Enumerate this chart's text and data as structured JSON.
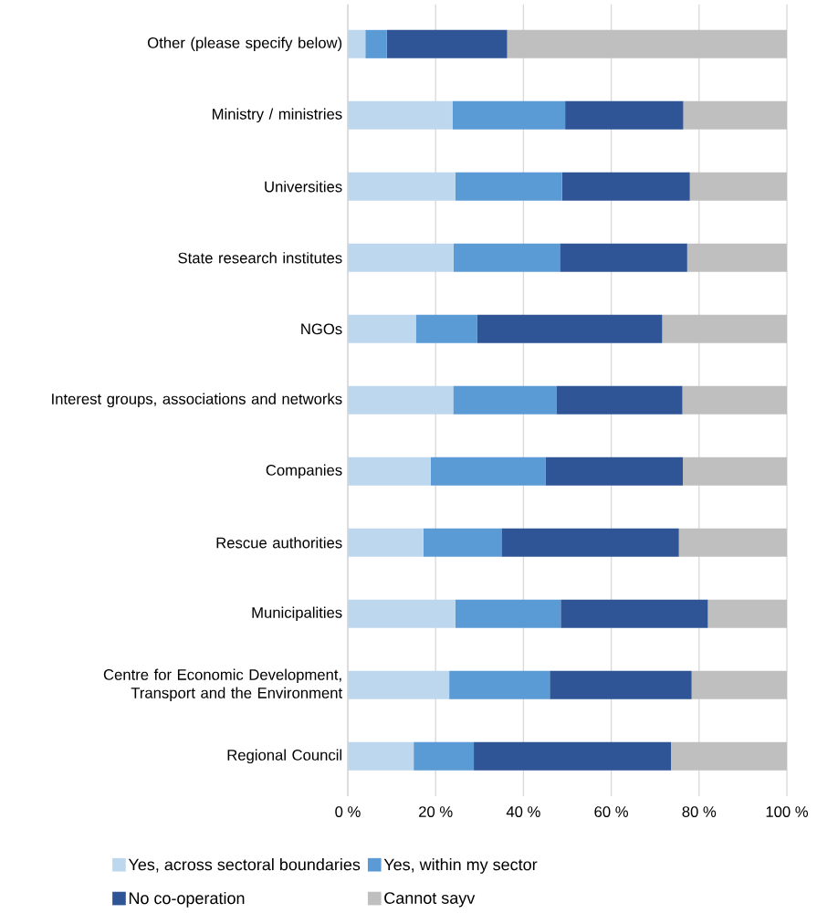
{
  "chart_data": {
    "type": "bar",
    "orientation": "horizontal",
    "stacked": true,
    "categories": [
      "Other (please specify below)",
      "Ministry / ministries",
      "Universities",
      "State research institutes",
      "NGOs",
      "Interest groups, associations and networks",
      "Companies",
      "Rescue authorities",
      "Municipalities",
      "Centre for Economic Development, Transport and the Environment",
      "Regional Council"
    ],
    "series": [
      {
        "name": "Yes, across sectoral boundaries",
        "color": "#bdd7ee",
        "values": [
          4.0,
          23.9,
          24.5,
          24.1,
          15.5,
          24.0,
          18.9,
          17.2,
          24.5,
          23.1,
          15.0
        ]
      },
      {
        "name": "Yes, within my sector",
        "color": "#5b9bd5",
        "values": [
          4.9,
          25.6,
          24.3,
          24.2,
          14.0,
          23.6,
          26.1,
          17.8,
          24.0,
          22.9,
          13.7
        ]
      },
      {
        "name": "No co-operation",
        "color": "#2f5597",
        "values": [
          27.4,
          26.9,
          29.1,
          29.0,
          42.1,
          28.6,
          31.3,
          40.4,
          33.5,
          32.3,
          44.9
        ]
      },
      {
        "name": "Cannot sayv",
        "color": "#bfbfbf",
        "values": [
          63.7,
          23.6,
          22.1,
          22.7,
          28.4,
          23.8,
          23.7,
          24.6,
          18.0,
          21.7,
          26.4
        ]
      }
    ],
    "xlim": [
      0,
      100
    ],
    "xticks": [
      {
        "value": 0,
        "label": "0 %"
      },
      {
        "value": 20,
        "label": "20 %"
      },
      {
        "value": 40,
        "label": "40 %"
      },
      {
        "value": 60,
        "label": "60 %"
      },
      {
        "value": 80,
        "label": "80 %"
      },
      {
        "value": 100,
        "label": "100 %"
      }
    ],
    "grid": "x",
    "legend": "bottom"
  }
}
